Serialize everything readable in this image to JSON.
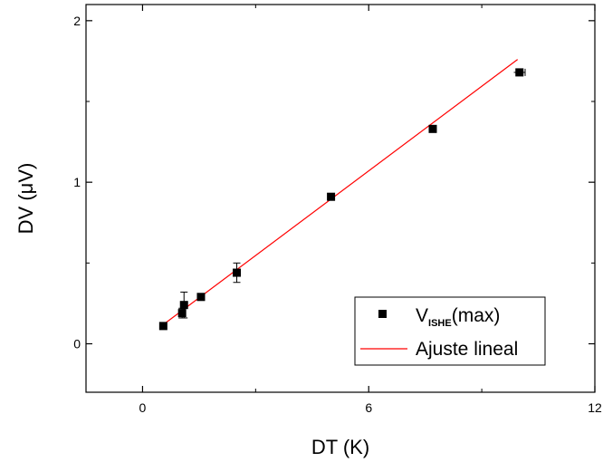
{
  "chart_data": {
    "type": "scatter",
    "xlabel": "DT (K)",
    "ylabel": "DV (μV)",
    "xlim": [
      -1.5,
      12
    ],
    "ylim": [
      -0.3,
      2.1
    ],
    "x_ticks": [
      0,
      6,
      12
    ],
    "x_tick_labels": [
      "0",
      "6",
      "12"
    ],
    "y_ticks": [
      0,
      1,
      2
    ],
    "y_tick_labels": [
      "0",
      "1",
      "2"
    ],
    "grid": false,
    "legend_position": "bottom-right",
    "series": [
      {
        "name": "V_ISHE(max)",
        "legend_main": "V",
        "legend_sub": "ISHE",
        "legend_tail": "(max)",
        "type": "scatter",
        "marker": "square",
        "color": "#000000",
        "points": [
          {
            "x": 0.55,
            "y": 0.11,
            "yerr": 0.02,
            "xerr": 0.0
          },
          {
            "x": 1.05,
            "y": 0.19,
            "yerr": 0.03,
            "xerr": 0.0
          },
          {
            "x": 1.1,
            "y": 0.24,
            "yerr": 0.08,
            "xerr": 0.0
          },
          {
            "x": 1.55,
            "y": 0.29,
            "yerr": 0.02,
            "xerr": 0.0
          },
          {
            "x": 2.5,
            "y": 0.44,
            "yerr": 0.06,
            "xerr": 0.0
          },
          {
            "x": 5.0,
            "y": 0.91,
            "yerr": 0.01,
            "xerr": 0.0
          },
          {
            "x": 7.7,
            "y": 1.33,
            "yerr": 0.01,
            "xerr": 0.0
          },
          {
            "x": 10.0,
            "y": 1.68,
            "yerr": 0.01,
            "xerr": 0.15
          }
        ]
      },
      {
        "name": "Ajuste lineal",
        "type": "line",
        "color": "#ff0000",
        "points": [
          {
            "x": 0.5,
            "y": 0.11
          },
          {
            "x": 9.95,
            "y": 1.76
          }
        ]
      }
    ]
  }
}
